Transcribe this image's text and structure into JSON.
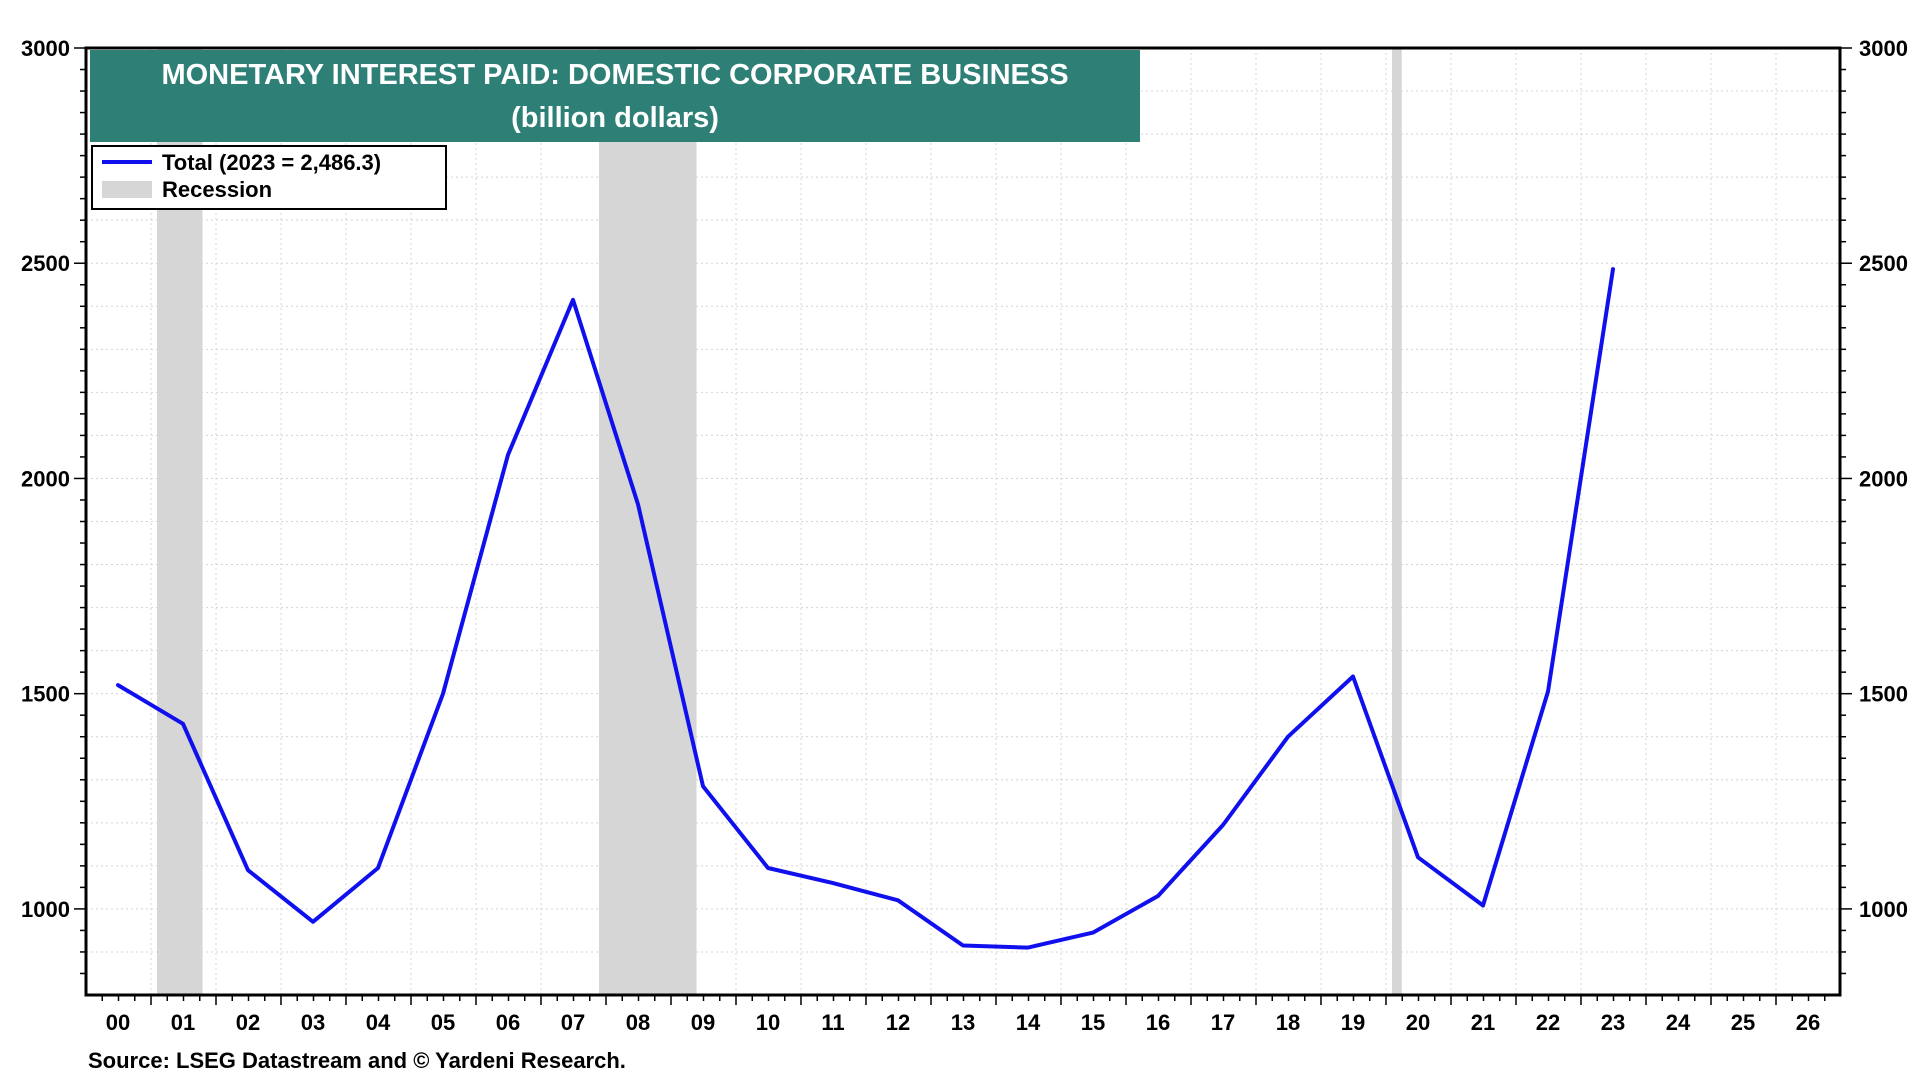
{
  "chart_data": {
    "type": "line",
    "title": "MONETARY INTEREST PAID: DOMESTIC CORPORATE BUSINESS",
    "subtitle": "(billion dollars)",
    "source": "Source: LSEG Datastream and © Yardeni Research.",
    "x_tick_labels": [
      "00",
      "01",
      "02",
      "03",
      "04",
      "05",
      "06",
      "07",
      "08",
      "09",
      "10",
      "11",
      "12",
      "13",
      "14",
      "15",
      "16",
      "17",
      "18",
      "19",
      "20",
      "21",
      "22",
      "23",
      "24",
      "25",
      "26"
    ],
    "x_range": [
      2000,
      2026
    ],
    "y_ticks": [
      1000,
      1500,
      2000,
      2500,
      3000
    ],
    "ylim": [
      800,
      3000
    ],
    "grid": true,
    "legend_position": "top-left",
    "series": [
      {
        "name": "Total (2023 = 2,486.3)",
        "color": "#1010ee",
        "x": [
          2000,
          2001,
          2002,
          2003,
          2004,
          2005,
          2006,
          2007,
          2008,
          2009,
          2010,
          2011,
          2012,
          2013,
          2014,
          2015,
          2016,
          2017,
          2018,
          2019,
          2020,
          2021,
          2022,
          2023
        ],
        "values": [
          1520,
          1430,
          1090,
          970,
          1095,
          1500,
          2055,
          2415,
          1940,
          1285,
          1095,
          1060,
          1020,
          915,
          910,
          945,
          1030,
          1195,
          1400,
          1540,
          1120,
          1008,
          1505,
          2486.3
        ]
      }
    ],
    "recession_label": "Recession",
    "recession_color": "#d6d6d6",
    "recessions": [
      [
        2000.6,
        2001.3
      ],
      [
        2007.4,
        2008.9
      ],
      [
        2019.6,
        2019.75
      ]
    ],
    "title_box_color": "#2e8077"
  }
}
